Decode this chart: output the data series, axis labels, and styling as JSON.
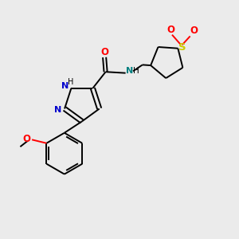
{
  "bg_color": "#ebebeb",
  "bond_color": "#000000",
  "N_color": "#0000cc",
  "O_color": "#ff0000",
  "S_color": "#cccc00",
  "NH_color": "#008080",
  "fig_width": 3.0,
  "fig_height": 3.0,
  "dpi": 100,
  "xlim": [
    0,
    10
  ],
  "ylim": [
    0,
    10
  ]
}
